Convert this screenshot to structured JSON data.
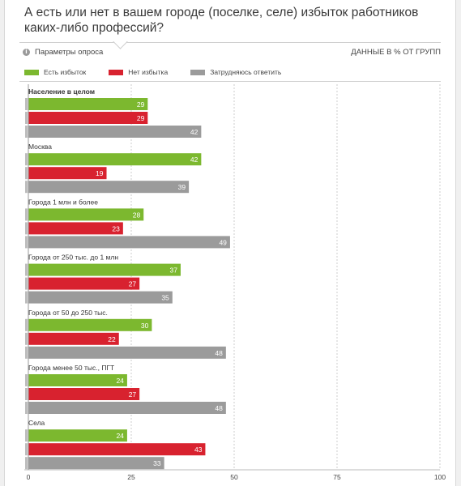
{
  "header": {
    "title": "А есть или нет в вашем городе (поселке, селе) избыток работников каких-либо профессий?",
    "params_label": "Параметры опроса",
    "units_label": "ДАННЫЕ В % ОТ ГРУПП"
  },
  "icons": {
    "params": "info-icon"
  },
  "colors": {
    "yes": "#7cb82f",
    "no": "#d8222f",
    "unsure": "#9b9b9b",
    "grid": "#cccccc"
  },
  "chart_data": {
    "type": "bar",
    "orientation": "horizontal",
    "title": "А есть или нет в вашем городе (поселке, селе) избыток работников каких-либо профессий?",
    "xlim": [
      0,
      100
    ],
    "xticks": [
      0,
      25,
      50,
      75,
      100
    ],
    "categories": [
      "Население в целом",
      "Москва",
      "Города 1 млн и более",
      "Города от 250 тыс. до 1 млн",
      "Города от 50 до 250 тыс.",
      "Города менее 50 тыс., ПГТ",
      "Села"
    ],
    "series": [
      {
        "name": "Есть избыток",
        "color": "#7cb82f",
        "values": [
          29,
          42,
          28,
          37,
          30,
          24,
          24
        ]
      },
      {
        "name": "Нет избытка",
        "color": "#d8222f",
        "values": [
          29,
          19,
          23,
          27,
          22,
          27,
          43
        ]
      },
      {
        "name": "Затрудняюсь ответить",
        "color": "#9b9b9b",
        "values": [
          42,
          39,
          49,
          35,
          48,
          48,
          33
        ]
      }
    ],
    "legend_position": "top-left",
    "grid": true
  }
}
